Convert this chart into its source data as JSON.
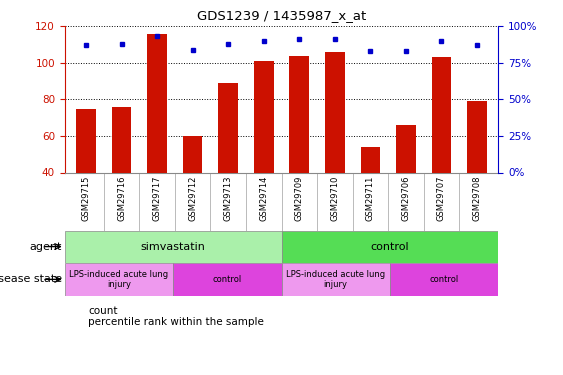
{
  "title": "GDS1239 / 1435987_x_at",
  "samples": [
    "GSM29715",
    "GSM29716",
    "GSM29717",
    "GSM29712",
    "GSM29713",
    "GSM29714",
    "GSM29709",
    "GSM29710",
    "GSM29711",
    "GSM29706",
    "GSM29707",
    "GSM29708"
  ],
  "count_values": [
    75,
    76,
    116,
    60,
    89,
    101,
    104,
    106,
    54,
    66,
    103,
    79
  ],
  "percentile_values": [
    87,
    88,
    93,
    84,
    88,
    90,
    91,
    91,
    83,
    83,
    90,
    87
  ],
  "ylim_left": [
    40,
    120
  ],
  "ylim_right": [
    0,
    100
  ],
  "yticks_left": [
    40,
    60,
    80,
    100,
    120
  ],
  "yticks_right": [
    0,
    25,
    50,
    75,
    100
  ],
  "ytick_labels_right": [
    "0%",
    "25%",
    "50%",
    "75%",
    "100%"
  ],
  "bar_color": "#cc1100",
  "dot_color": "#0000cc",
  "agent_groups": [
    {
      "label": "simvastatin",
      "start": 0,
      "end": 6,
      "color": "#aaf0aa"
    },
    {
      "label": "control",
      "start": 6,
      "end": 12,
      "color": "#55dd55"
    }
  ],
  "disease_groups": [
    {
      "label": "LPS-induced acute lung\ninjury",
      "start": 0,
      "end": 3,
      "color": "#ee99ee"
    },
    {
      "label": "control",
      "start": 3,
      "end": 6,
      "color": "#dd44dd"
    },
    {
      "label": "LPS-induced acute lung\ninjury",
      "start": 6,
      "end": 9,
      "color": "#ee99ee"
    },
    {
      "label": "control",
      "start": 9,
      "end": 12,
      "color": "#dd44dd"
    }
  ],
  "legend_count_label": "count",
  "legend_pct_label": "percentile rank within the sample",
  "agent_row_label": "agent",
  "disease_row_label": "disease state",
  "grid_color": "#000000",
  "tick_color_left": "#cc1100",
  "tick_color_right": "#0000cc",
  "bg_color": "#ffffff",
  "plot_bg": "#ffffff",
  "xtick_bg": "#c8c8c8",
  "border_color": "#888888"
}
